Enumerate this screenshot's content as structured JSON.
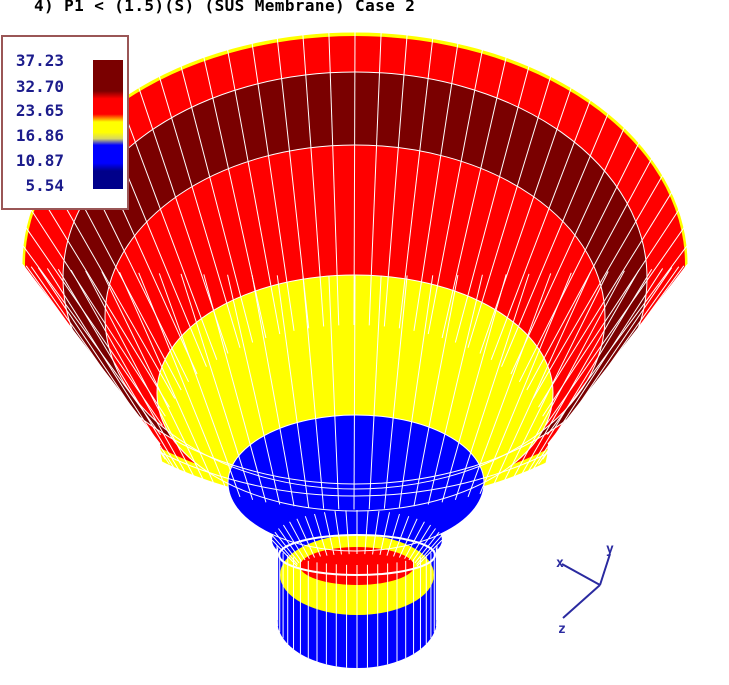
{
  "title": "4) P1 < (1.5)(S) (SUS Membrane) Case 2",
  "legend": {
    "levels": [
      "37.23",
      "32.70",
      "23.65",
      "16.86",
      "10.87",
      "5.54"
    ]
  },
  "axes_triad": {
    "x": "x",
    "y": "y",
    "z": "z"
  },
  "colors": {
    "dark_red": "#7a0000",
    "red": "#ff0000",
    "yellow": "#ffff00",
    "blue": "#0000ff",
    "navy": "#00008a",
    "mesh_lines": "#ffffff",
    "legend_text": "#1c1c8c",
    "legend_border": "#9a5656"
  }
}
